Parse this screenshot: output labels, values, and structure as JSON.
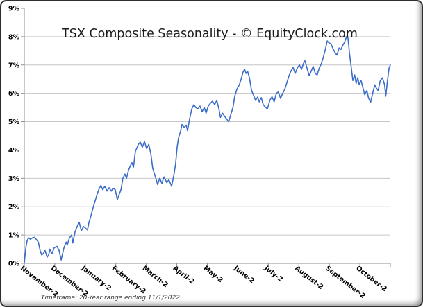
{
  "frame": {
    "background": "#ffffff",
    "border_color": "#2e2e2e"
  },
  "chart_data": {
    "type": "line",
    "title": "TSX Composite Seasonality - © EquityClock.com",
    "footnote": "Timeframe: 20-Year range ending 11/1/2022",
    "xlabel": "",
    "ylabel": "",
    "x_tick_labels": [
      "November-2",
      "December-2",
      "January-2",
      "February-2",
      "March-2",
      "April-2",
      "May-2",
      "June-2",
      "July-2",
      "August-2",
      "September-2",
      "October-2"
    ],
    "y_tick_labels": [
      "0%",
      "1%",
      "2%",
      "3%",
      "4%",
      "5%",
      "6%",
      "7%",
      "8%",
      "9%"
    ],
    "ylim": [
      0,
      9
    ],
    "xlim_months": [
      0,
      12
    ],
    "grid": true,
    "legend_position": "none",
    "colors": {
      "line": "#3b6cc7",
      "grid": "#c6c6c6",
      "axis": "#8e8e8e",
      "text": "#000000",
      "title": "#1b1b1b"
    },
    "series": [
      {
        "name": "TSX Composite Seasonality",
        "color": "#3b6cc7",
        "points": [
          [
            0.0,
            0.02
          ],
          [
            0.05,
            0.55
          ],
          [
            0.09,
            0.8
          ],
          [
            0.14,
            0.9
          ],
          [
            0.2,
            0.85
          ],
          [
            0.27,
            0.9
          ],
          [
            0.34,
            0.92
          ],
          [
            0.39,
            0.85
          ],
          [
            0.46,
            0.75
          ],
          [
            0.52,
            0.45
          ],
          [
            0.57,
            0.3
          ],
          [
            0.61,
            0.33
          ],
          [
            0.68,
            0.45
          ],
          [
            0.75,
            0.22
          ],
          [
            0.8,
            0.3
          ],
          [
            0.84,
            0.5
          ],
          [
            0.91,
            0.35
          ],
          [
            0.98,
            0.55
          ],
          [
            1.07,
            0.6
          ],
          [
            1.14,
            0.45
          ],
          [
            1.21,
            0.12
          ],
          [
            1.25,
            0.32
          ],
          [
            1.3,
            0.55
          ],
          [
            1.37,
            0.75
          ],
          [
            1.41,
            0.65
          ],
          [
            1.48,
            0.9
          ],
          [
            1.55,
            1.0
          ],
          [
            1.59,
            0.72
          ],
          [
            1.66,
            1.1
          ],
          [
            1.75,
            1.35
          ],
          [
            1.8,
            1.45
          ],
          [
            1.87,
            1.15
          ],
          [
            1.94,
            1.3
          ],
          [
            2.0,
            1.25
          ],
          [
            2.07,
            1.18
          ],
          [
            2.12,
            1.45
          ],
          [
            2.19,
            1.7
          ],
          [
            2.25,
            1.95
          ],
          [
            2.32,
            2.2
          ],
          [
            2.39,
            2.45
          ],
          [
            2.44,
            2.6
          ],
          [
            2.51,
            2.75
          ],
          [
            2.57,
            2.6
          ],
          [
            2.64,
            2.72
          ],
          [
            2.71,
            2.55
          ],
          [
            2.78,
            2.67
          ],
          [
            2.85,
            2.55
          ],
          [
            2.91,
            2.65
          ],
          [
            2.98,
            2.6
          ],
          [
            3.05,
            2.25
          ],
          [
            3.1,
            2.4
          ],
          [
            3.17,
            2.6
          ],
          [
            3.23,
            3.0
          ],
          [
            3.3,
            3.15
          ],
          [
            3.35,
            3.0
          ],
          [
            3.42,
            3.3
          ],
          [
            3.48,
            3.45
          ],
          [
            3.53,
            3.55
          ],
          [
            3.58,
            3.4
          ],
          [
            3.64,
            3.95
          ],
          [
            3.74,
            4.2
          ],
          [
            3.8,
            4.28
          ],
          [
            3.87,
            4.1
          ],
          [
            3.94,
            4.3
          ],
          [
            4.01,
            4.05
          ],
          [
            4.08,
            4.2
          ],
          [
            4.15,
            3.85
          ],
          [
            4.21,
            3.35
          ],
          [
            4.3,
            3.05
          ],
          [
            4.37,
            2.78
          ],
          [
            4.44,
            3.0
          ],
          [
            4.51,
            2.82
          ],
          [
            4.58,
            3.05
          ],
          [
            4.67,
            2.85
          ],
          [
            4.74,
            2.95
          ],
          [
            4.83,
            2.72
          ],
          [
            4.9,
            3.1
          ],
          [
            4.96,
            3.5
          ],
          [
            5.01,
            4.1
          ],
          [
            5.06,
            4.45
          ],
          [
            5.12,
            4.65
          ],
          [
            5.17,
            4.9
          ],
          [
            5.24,
            4.8
          ],
          [
            5.31,
            4.88
          ],
          [
            5.35,
            4.68
          ],
          [
            5.42,
            5.1
          ],
          [
            5.49,
            5.45
          ],
          [
            5.56,
            5.6
          ],
          [
            5.62,
            5.5
          ],
          [
            5.69,
            5.45
          ],
          [
            5.76,
            5.55
          ],
          [
            5.83,
            5.35
          ],
          [
            5.9,
            5.5
          ],
          [
            5.96,
            5.3
          ],
          [
            6.03,
            5.55
          ],
          [
            6.1,
            5.65
          ],
          [
            6.17,
            5.72
          ],
          [
            6.24,
            5.6
          ],
          [
            6.31,
            5.75
          ],
          [
            6.38,
            5.45
          ],
          [
            6.43,
            5.15
          ],
          [
            6.5,
            5.3
          ],
          [
            6.56,
            5.2
          ],
          [
            6.63,
            5.1
          ],
          [
            6.7,
            5.0
          ],
          [
            6.77,
            5.25
          ],
          [
            6.84,
            5.5
          ],
          [
            6.9,
            5.9
          ],
          [
            6.97,
            6.15
          ],
          [
            7.05,
            6.3
          ],
          [
            7.11,
            6.5
          ],
          [
            7.17,
            6.75
          ],
          [
            7.22,
            6.85
          ],
          [
            7.27,
            6.7
          ],
          [
            7.32,
            6.78
          ],
          [
            7.38,
            6.55
          ],
          [
            7.45,
            6.1
          ],
          [
            7.51,
            5.95
          ],
          [
            7.58,
            5.75
          ],
          [
            7.65,
            5.87
          ],
          [
            7.7,
            5.7
          ],
          [
            7.77,
            5.85
          ],
          [
            7.83,
            5.6
          ],
          [
            7.9,
            5.52
          ],
          [
            7.97,
            5.45
          ],
          [
            8.05,
            5.75
          ],
          [
            8.12,
            5.88
          ],
          [
            8.19,
            5.7
          ],
          [
            8.26,
            6.0
          ],
          [
            8.33,
            6.05
          ],
          [
            8.4,
            5.82
          ],
          [
            8.47,
            6.0
          ],
          [
            8.53,
            6.12
          ],
          [
            8.6,
            6.35
          ],
          [
            8.67,
            6.6
          ],
          [
            8.74,
            6.78
          ],
          [
            8.81,
            6.92
          ],
          [
            8.88,
            6.7
          ],
          [
            8.95,
            6.9
          ],
          [
            9.02,
            7.0
          ],
          [
            9.09,
            6.85
          ],
          [
            9.15,
            7.05
          ],
          [
            9.2,
            7.15
          ],
          [
            9.27,
            6.88
          ],
          [
            9.34,
            6.62
          ],
          [
            9.41,
            6.8
          ],
          [
            9.47,
            6.95
          ],
          [
            9.54,
            6.7
          ],
          [
            9.6,
            6.65
          ],
          [
            9.67,
            6.9
          ],
          [
            9.74,
            7.05
          ],
          [
            9.81,
            7.3
          ],
          [
            9.88,
            7.6
          ],
          [
            9.93,
            7.85
          ],
          [
            9.99,
            7.78
          ],
          [
            10.05,
            7.75
          ],
          [
            10.11,
            7.6
          ],
          [
            10.18,
            7.45
          ],
          [
            10.25,
            7.35
          ],
          [
            10.32,
            7.6
          ],
          [
            10.38,
            7.55
          ],
          [
            10.44,
            7.7
          ],
          [
            10.5,
            7.8
          ],
          [
            10.56,
            8.0
          ],
          [
            10.61,
            7.95
          ],
          [
            10.66,
            7.4
          ],
          [
            10.72,
            6.9
          ],
          [
            10.77,
            6.45
          ],
          [
            10.83,
            6.65
          ],
          [
            10.88,
            6.35
          ],
          [
            10.93,
            6.55
          ],
          [
            10.98,
            6.3
          ],
          [
            11.04,
            6.45
          ],
          [
            11.1,
            6.2
          ],
          [
            11.16,
            5.95
          ],
          [
            11.23,
            6.1
          ],
          [
            11.28,
            5.85
          ],
          [
            11.35,
            5.68
          ],
          [
            11.42,
            6.0
          ],
          [
            11.49,
            6.3
          ],
          [
            11.53,
            6.2
          ],
          [
            11.6,
            6.1
          ],
          [
            11.67,
            6.45
          ],
          [
            11.74,
            6.55
          ],
          [
            11.81,
            6.3
          ],
          [
            11.85,
            5.9
          ],
          [
            11.9,
            6.4
          ],
          [
            11.96,
            6.9
          ],
          [
            12.0,
            7.0
          ]
        ]
      }
    ]
  }
}
